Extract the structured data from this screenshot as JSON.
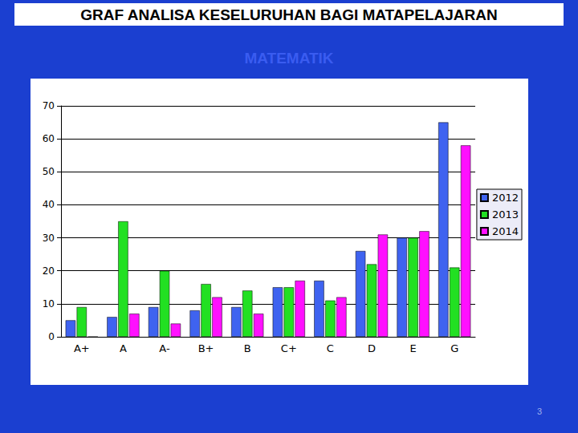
{
  "page_number": 3,
  "chart_data": {
    "type": "bar",
    "title": "GRAF ANALISA KESELURUHAN BAGI MATAPELAJARAN",
    "subtitle": "MATEMATIK",
    "categories": [
      "A+",
      "A",
      "A-",
      "B+",
      "B",
      "C+",
      "C",
      "D",
      "E",
      "G"
    ],
    "series": [
      {
        "name": "2012",
        "color": "#3f63f0",
        "values": [
          5,
          6,
          9,
          8,
          9,
          15,
          17,
          26,
          30,
          65
        ]
      },
      {
        "name": "2013",
        "color": "#22e022",
        "values": [
          9,
          35,
          20,
          16,
          14,
          15,
          11,
          22,
          30,
          21
        ]
      },
      {
        "name": "2014",
        "color": "#ff10ff",
        "values": [
          0,
          7,
          4,
          12,
          7,
          17,
          12,
          31,
          32,
          58
        ]
      }
    ],
    "ylim": [
      0,
      70
    ],
    "yticks": [
      0,
      10,
      20,
      30,
      40,
      50,
      60,
      70
    ],
    "grid": true,
    "legend": "right"
  }
}
